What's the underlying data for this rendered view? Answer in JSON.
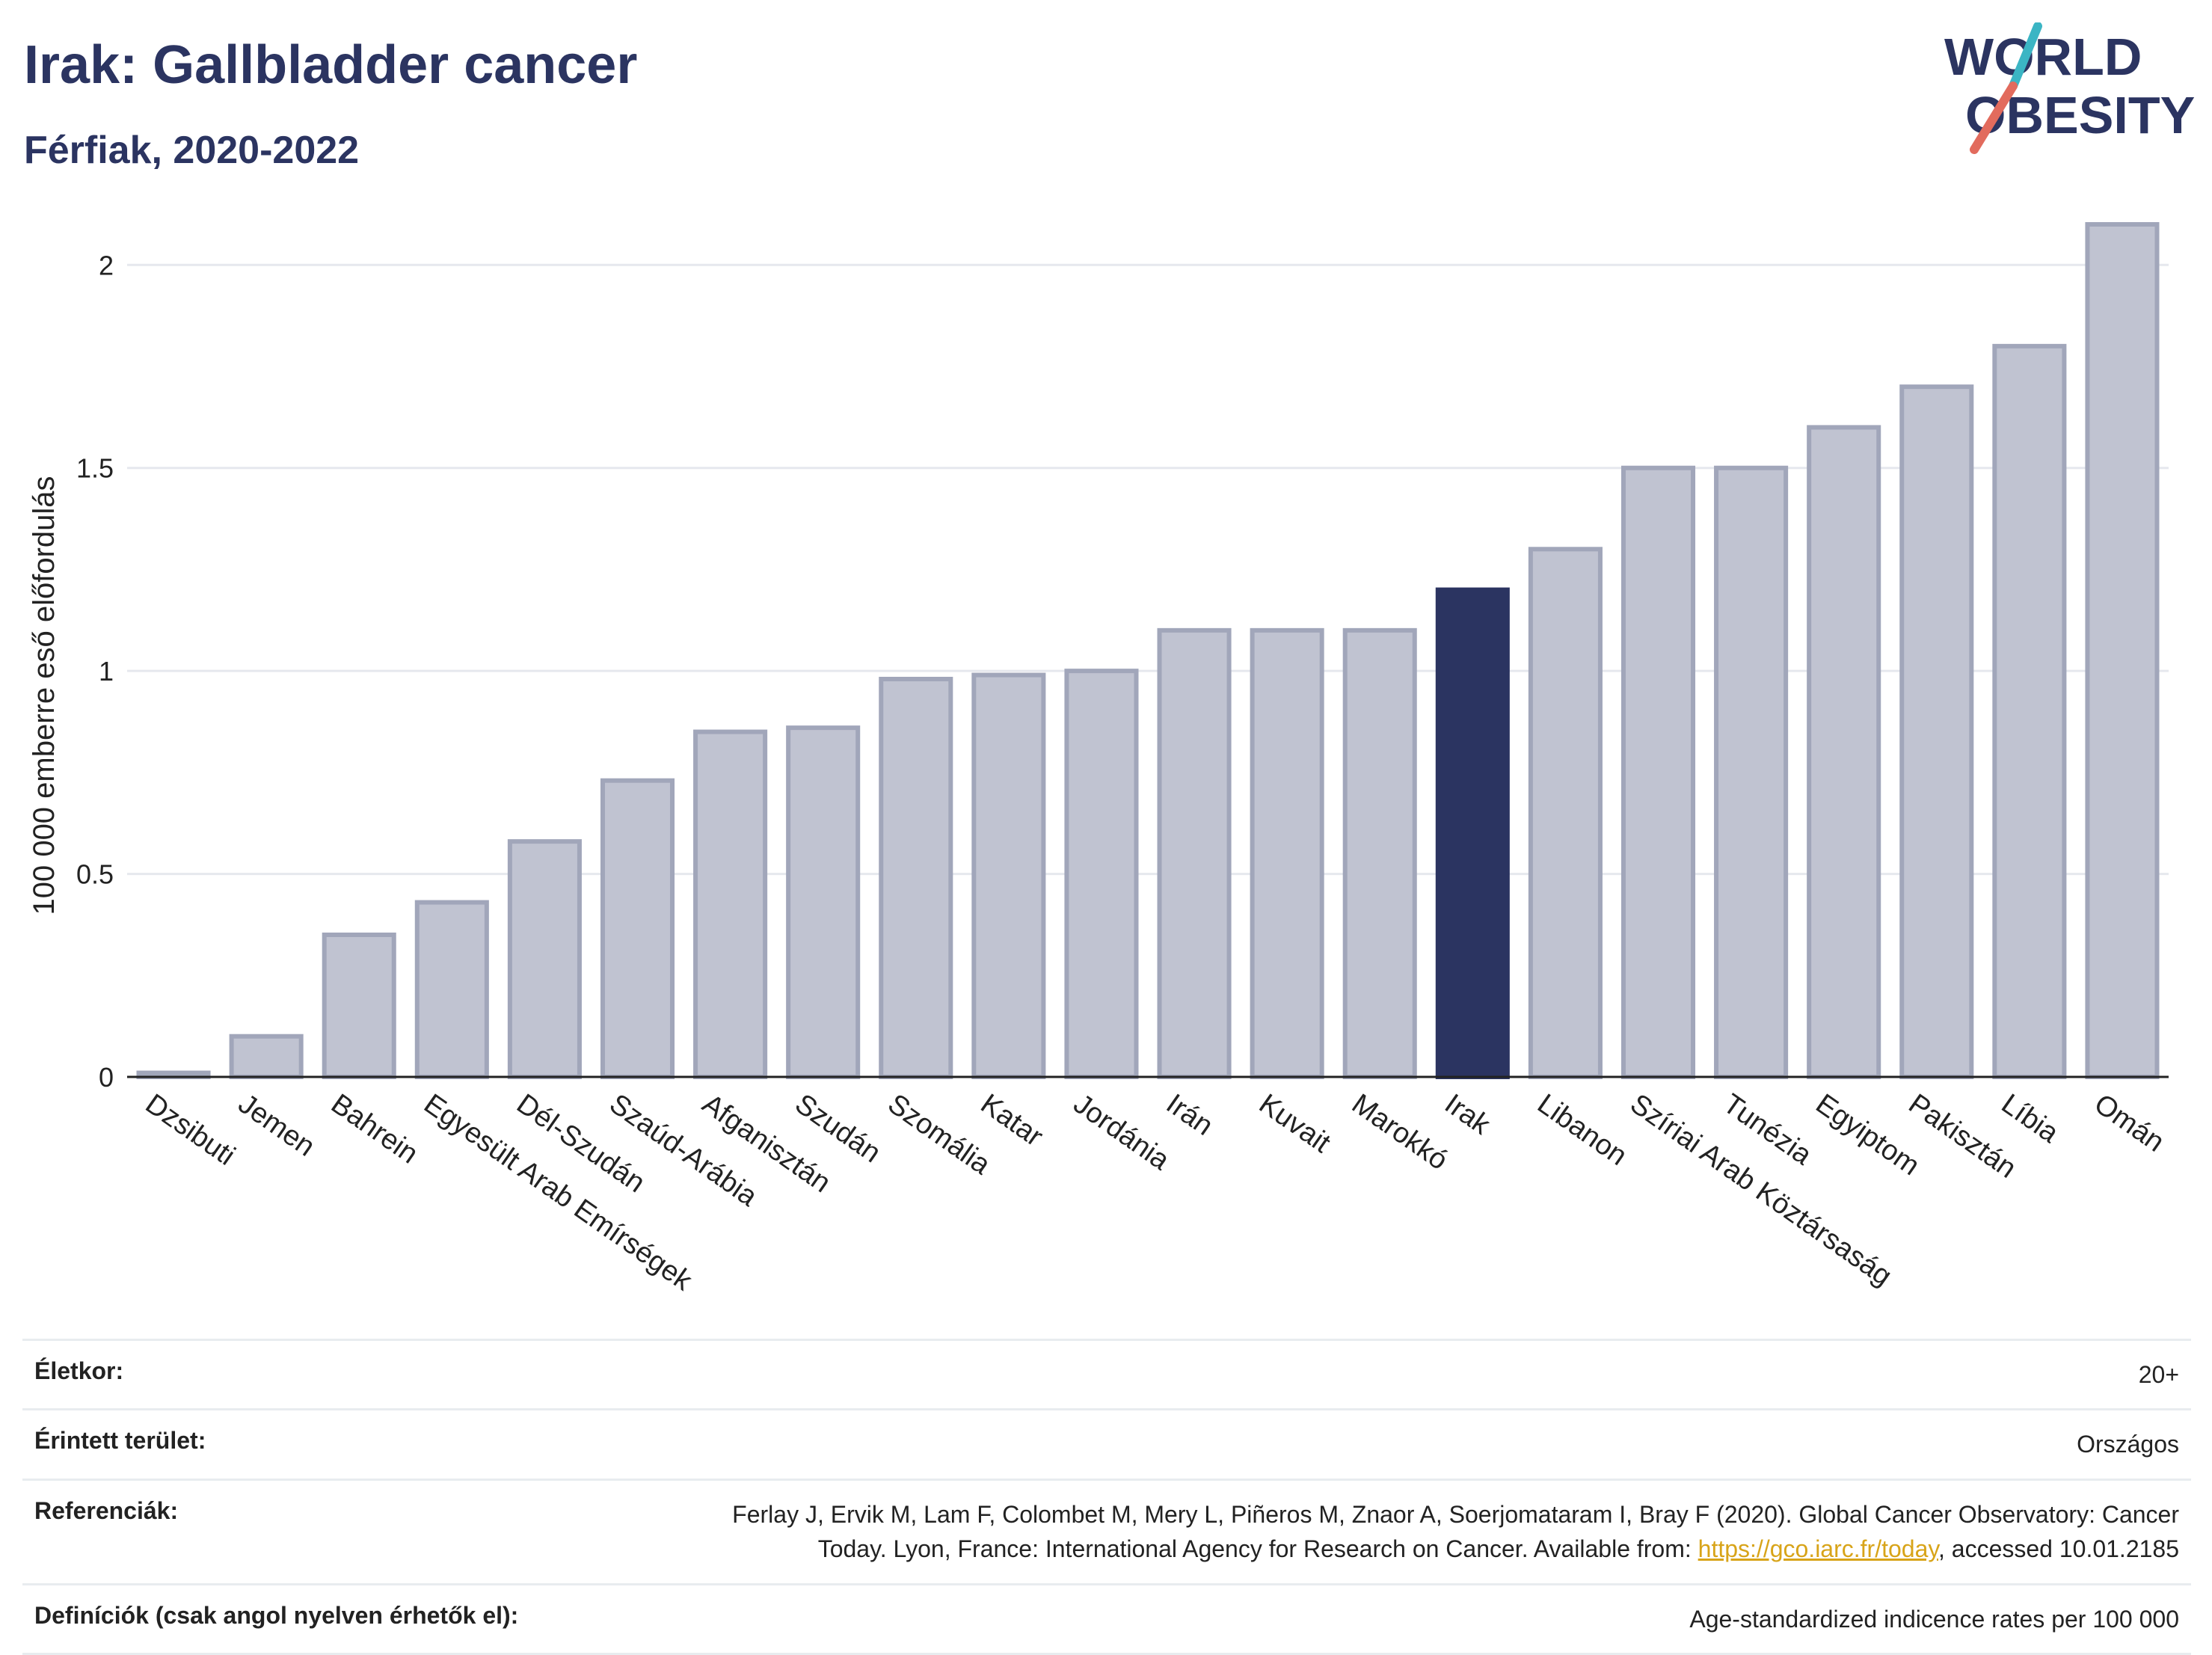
{
  "header": {
    "title": "Irak: Gallbladder cancer",
    "subtitle": "Férfiak, 2020-2022"
  },
  "logo": {
    "line1": "WORLD",
    "line2": "OBESITY",
    "colors": {
      "navy": "#2b3461",
      "teal": "#3bb5c4",
      "coral": "#e26b5d"
    }
  },
  "chart_data": {
    "type": "bar",
    "title": "",
    "xlabel": "",
    "ylabel": "100 000 emberre eső előfordulás",
    "ylim": [
      0,
      2.1
    ],
    "yticks": [
      0,
      0.5,
      1,
      1.5,
      2
    ],
    "ytick_labels": [
      "0",
      "0.5",
      "1",
      "1.5",
      "2"
    ],
    "grid": true,
    "highlight": "Irak",
    "colors": {
      "bar": "#c0c3d1",
      "bar_edge": "#a1a6ba",
      "highlight": "#2b3461",
      "grid": "#e6e8ee",
      "axis": "#222222"
    },
    "categories": [
      "Dzsibuti",
      "Jemen",
      "Bahrein",
      "Egyesült Arab Emírségek",
      "Dél-Szudán",
      "Szaúd-Arábia",
      "Afganisztán",
      "Szudán",
      "Szomália",
      "Katar",
      "Jordánia",
      "Irán",
      "Kuvait",
      "Marokkó",
      "Irak",
      "Libanon",
      "Szíriai Arab Köztársaság",
      "Tunézia",
      "Egyiptom",
      "Pakisztán",
      "Líbia",
      "Omán"
    ],
    "values": [
      0.01,
      0.1,
      0.35,
      0.43,
      0.58,
      0.73,
      0.85,
      0.86,
      0.98,
      0.99,
      1.0,
      1.1,
      1.1,
      1.1,
      1.2,
      1.3,
      1.5,
      1.5,
      1.6,
      1.7,
      1.8,
      2.1
    ]
  },
  "meta": {
    "age_label": "Életkor:",
    "age_value": "20+",
    "area_label": "Érintett terület:",
    "area_value": "Országos",
    "ref_label": "Referenciák:",
    "ref_text1": "Ferlay J, Ervik M, Lam F, Colombet M, Mery L, Piñeros M, Znaor A, Soerjomataram I, Bray F (2020). Global Cancer Observatory: Cancer",
    "ref_text2": "Today. Lyon, France: International Agency for Research on Cancer. Available from: ",
    "ref_link": "https://gco.iarc.fr/today",
    "ref_text3": ", accessed 10.01.2185",
    "def_label": "Definíciók (csak angol nyelven érhetők el):",
    "def_value": "Age-standardized indicence rates per 100 000"
  }
}
